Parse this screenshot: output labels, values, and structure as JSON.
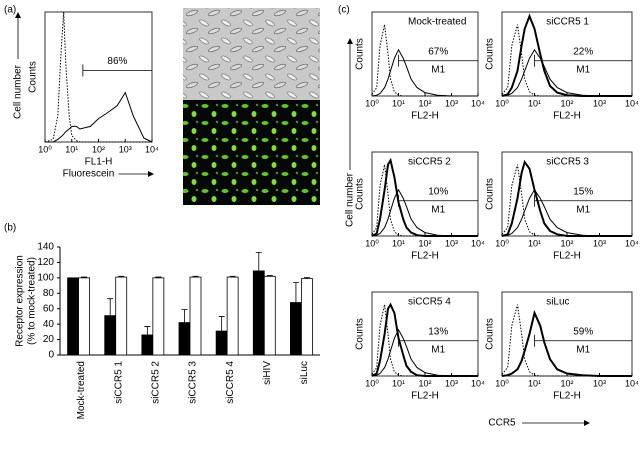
{
  "panel_labels": [
    "(a)",
    "(b)",
    "(c)"
  ],
  "shared": {
    "ylabel": "Cell number",
    "xlabel": "CCR5"
  },
  "chart_data": [
    {
      "type": "line",
      "xlog": true,
      "xlim": [
        1,
        10000
      ],
      "ylim": [
        0,
        100
      ],
      "xticks": [
        {
          "value": 1,
          "label": "10⁰"
        },
        {
          "value": 10,
          "label": "10¹"
        },
        {
          "value": 100,
          "label": "10²"
        },
        {
          "value": 1000,
          "label": "10³"
        },
        {
          "value": 10000,
          "label": "10⁴"
        }
      ],
      "xlabel": "FL1-H",
      "xlabel2": "Fluorescein",
      "ylabel": "Counts",
      "ylabel2": "Cell number",
      "annotation": "86%",
      "gate": [
        26,
        10000
      ],
      "x": [
        1,
        2,
        3,
        4,
        5,
        6,
        8,
        10,
        15,
        20,
        50,
        100,
        200,
        500,
        1000,
        2000,
        5000,
        10000
      ],
      "series": [
        {
          "color": "#000",
          "style": "dotted",
          "width": 1,
          "values": [
            0,
            2,
            20,
            70,
            100,
            60,
            20,
            5,
            1,
            0,
            0,
            0,
            0,
            0,
            0,
            0,
            0,
            0
          ]
        },
        {
          "color": "#000",
          "style": "solid",
          "width": 1,
          "values": [
            0,
            0,
            2,
            4,
            6,
            8,
            10,
            12,
            12,
            10,
            12,
            18,
            22,
            28,
            38,
            20,
            3,
            0
          ]
        }
      ]
    },
    {
      "type": "bar",
      "categories": [
        "Mock-treated",
        "siCCR5 1",
        "siCCR5 2",
        "siCCR5 3",
        "siCCR5 4",
        "siHIV",
        "siLuc"
      ],
      "ylim": [
        0,
        140
      ],
      "yticks": [
        0,
        20,
        40,
        60,
        80,
        100,
        120,
        140
      ],
      "ylabel": "Receptor expression",
      "ylabel2": "(% to mock-treated)",
      "series": [
        {
          "color": "#000",
          "values": [
            100,
            51,
            26,
            42,
            31,
            109,
            68
          ],
          "errors": [
            0,
            22,
            11,
            17,
            19,
            24,
            26
          ]
        },
        {
          "color": "#fff",
          "values": [
            100,
            101,
            100,
            101,
            101,
            102,
            99
          ],
          "errors": [
            1,
            1,
            1,
            1,
            1,
            1,
            1.5
          ]
        }
      ]
    },
    {
      "type": "line",
      "xlog": true,
      "title": "Mock-treated",
      "annotation": "67%",
      "gate_label": "M1",
      "gate": [
        10,
        10000
      ],
      "xlabel": "FL2-H",
      "ylabel": "Counts",
      "xlim": [
        1,
        10000
      ],
      "ylim": [
        0,
        100
      ],
      "xticks": [
        {
          "value": 1,
          "label": "10⁰"
        },
        {
          "value": 10,
          "label": "10¹"
        },
        {
          "value": 100,
          "label": "10²"
        },
        {
          "value": 1000,
          "label": "10³"
        },
        {
          "value": 10000,
          "label": "10⁴"
        }
      ],
      "x": [
        1,
        1.5,
        2,
        3,
        4,
        5,
        7,
        10,
        15,
        20,
        30,
        50,
        100,
        300,
        1000,
        10000
      ],
      "series": [
        {
          "color": "#000",
          "style": "dotted",
          "width": 1,
          "values": [
            2,
            10,
            60,
            85,
            50,
            20,
            5,
            1,
            0,
            0,
            0,
            0,
            0,
            0,
            0,
            0
          ]
        },
        {
          "color": "#000",
          "style": "solid",
          "width": 1,
          "values": [
            0,
            1,
            3,
            10,
            20,
            30,
            45,
            55,
            45,
            35,
            20,
            10,
            4,
            1,
            0,
            0
          ]
        }
      ]
    },
    {
      "type": "line",
      "xlog": true,
      "title": "siCCR5 1",
      "annotation": "22%",
      "gate_label": "M1",
      "gate": [
        10,
        10000
      ],
      "xlabel": "FL2-H",
      "ylabel": "Counts",
      "xlim": [
        1,
        10000
      ],
      "ylim": [
        0,
        100
      ],
      "xticks": [
        {
          "value": 1,
          "label": "10⁰"
        },
        {
          "value": 10,
          "label": "10¹"
        },
        {
          "value": 100,
          "label": "10²"
        },
        {
          "value": 1000,
          "label": "10³"
        },
        {
          "value": 10000,
          "label": "10⁴"
        }
      ],
      "x": [
        1,
        1.5,
        2,
        3,
        4,
        5,
        7,
        10,
        15,
        20,
        30,
        50,
        100,
        300,
        1000,
        10000
      ],
      "series": [
        {
          "color": "#000",
          "style": "dotted",
          "width": 1,
          "values": [
            2,
            10,
            60,
            85,
            50,
            20,
            5,
            1,
            0,
            0,
            0,
            0,
            0,
            0,
            0,
            0
          ]
        },
        {
          "color": "#000",
          "style": "solid",
          "width": 1,
          "values": [
            0,
            1,
            3,
            10,
            20,
            30,
            45,
            55,
            45,
            35,
            20,
            10,
            4,
            1,
            0,
            0
          ]
        },
        {
          "color": "#000",
          "style": "solid",
          "width": 2,
          "values": [
            0,
            2,
            10,
            30,
            60,
            80,
            95,
            80,
            50,
            30,
            12,
            4,
            1,
            0,
            0,
            0
          ]
        }
      ]
    },
    {
      "type": "line",
      "xlog": true,
      "title": "siCCR5 2",
      "annotation": "10%",
      "gate_label": "M1",
      "gate": [
        10,
        10000
      ],
      "xlabel": "FL2-H",
      "ylabel": "Counts",
      "xlim": [
        1,
        10000
      ],
      "ylim": [
        0,
        100
      ],
      "xticks": [
        {
          "value": 1,
          "label": "10⁰"
        },
        {
          "value": 10,
          "label": "10¹"
        },
        {
          "value": 100,
          "label": "10²"
        },
        {
          "value": 1000,
          "label": "10³"
        },
        {
          "value": 10000,
          "label": "10⁴"
        }
      ],
      "x": [
        1,
        1.5,
        2,
        3,
        4,
        5,
        7,
        10,
        15,
        20,
        30,
        50,
        100,
        300,
        1000,
        10000
      ],
      "series": [
        {
          "color": "#000",
          "style": "dotted",
          "width": 1,
          "values": [
            2,
            10,
            60,
            85,
            50,
            20,
            5,
            1,
            0,
            0,
            0,
            0,
            0,
            0,
            0,
            0
          ]
        },
        {
          "color": "#000",
          "style": "solid",
          "width": 1,
          "values": [
            0,
            1,
            3,
            10,
            20,
            30,
            45,
            55,
            45,
            35,
            20,
            10,
            4,
            1,
            0,
            0
          ]
        },
        {
          "color": "#000",
          "style": "solid",
          "width": 2,
          "values": [
            0,
            3,
            20,
            55,
            85,
            90,
            70,
            40,
            20,
            10,
            4,
            1,
            0,
            0,
            0,
            0
          ]
        }
      ]
    },
    {
      "type": "line",
      "xlog": true,
      "title": "siCCR5 3",
      "annotation": "15%",
      "gate_label": "M1",
      "gate": [
        10,
        10000
      ],
      "xlabel": "FL2-H",
      "ylabel": "Counts",
      "xlim": [
        1,
        10000
      ],
      "ylim": [
        0,
        100
      ],
      "xticks": [
        {
          "value": 1,
          "label": "10⁰"
        },
        {
          "value": 10,
          "label": "10¹"
        },
        {
          "value": 100,
          "label": "10²"
        },
        {
          "value": 1000,
          "label": "10³"
        },
        {
          "value": 10000,
          "label": "10⁴"
        }
      ],
      "x": [
        1,
        1.5,
        2,
        3,
        4,
        5,
        7,
        10,
        15,
        20,
        30,
        50,
        100,
        300,
        1000,
        10000
      ],
      "series": [
        {
          "color": "#000",
          "style": "dotted",
          "width": 1,
          "values": [
            2,
            10,
            60,
            85,
            50,
            20,
            5,
            1,
            0,
            0,
            0,
            0,
            0,
            0,
            0,
            0
          ]
        },
        {
          "color": "#000",
          "style": "solid",
          "width": 1,
          "values": [
            0,
            1,
            3,
            10,
            20,
            30,
            45,
            55,
            45,
            35,
            20,
            10,
            4,
            1,
            0,
            0
          ]
        },
        {
          "color": "#000",
          "style": "solid",
          "width": 2,
          "values": [
            0,
            2,
            15,
            45,
            75,
            88,
            80,
            55,
            30,
            15,
            6,
            2,
            0,
            0,
            0,
            0
          ]
        }
      ]
    },
    {
      "type": "line",
      "xlog": true,
      "title": "siCCR5 4",
      "annotation": "13%",
      "gate_label": "M1",
      "gate": [
        10,
        10000
      ],
      "xlabel": "FL2-H",
      "ylabel": "Counts",
      "xlim": [
        1,
        10000
      ],
      "ylim": [
        0,
        100
      ],
      "xticks": [
        {
          "value": 1,
          "label": "10⁰"
        },
        {
          "value": 10,
          "label": "10¹"
        },
        {
          "value": 100,
          "label": "10²"
        },
        {
          "value": 1000,
          "label": "10³"
        },
        {
          "value": 10000,
          "label": "10⁴"
        }
      ],
      "x": [
        1,
        1.5,
        2,
        3,
        4,
        5,
        7,
        10,
        15,
        20,
        30,
        50,
        100,
        300,
        1000,
        10000
      ],
      "series": [
        {
          "color": "#000",
          "style": "dotted",
          "width": 1,
          "values": [
            2,
            10,
            60,
            85,
            50,
            20,
            5,
            1,
            0,
            0,
            0,
            0,
            0,
            0,
            0,
            0
          ]
        },
        {
          "color": "#000",
          "style": "solid",
          "width": 1,
          "values": [
            0,
            1,
            3,
            10,
            20,
            30,
            45,
            55,
            45,
            35,
            20,
            10,
            4,
            1,
            0,
            0
          ]
        },
        {
          "color": "#000",
          "style": "solid",
          "width": 2,
          "values": [
            0,
            3,
            18,
            50,
            80,
            85,
            75,
            45,
            25,
            12,
            5,
            1,
            0,
            0,
            0,
            0
          ]
        }
      ]
    },
    {
      "type": "line",
      "xlog": true,
      "title": "siLuc",
      "annotation": "59%",
      "gate_label": "M1",
      "gate": [
        10,
        10000
      ],
      "xlabel": "FL2-H",
      "ylabel": "Counts",
      "xlim": [
        1,
        10000
      ],
      "ylim": [
        0,
        100
      ],
      "xticks": [
        {
          "value": 1,
          "label": "10⁰"
        },
        {
          "value": 10,
          "label": "10¹"
        },
        {
          "value": 100,
          "label": "10²"
        },
        {
          "value": 1000,
          "label": "10³"
        },
        {
          "value": 10000,
          "label": "10⁴"
        }
      ],
      "x": [
        1,
        1.5,
        2,
        3,
        4,
        5,
        7,
        10,
        15,
        20,
        30,
        50,
        100,
        300,
        1000,
        10000
      ],
      "series": [
        {
          "color": "#000",
          "style": "dotted",
          "width": 1,
          "values": [
            2,
            10,
            60,
            85,
            50,
            20,
            5,
            1,
            0,
            0,
            0,
            0,
            0,
            0,
            0,
            0
          ]
        },
        {
          "color": "#000",
          "style": "solid",
          "width": 2,
          "values": [
            0,
            1,
            3,
            8,
            18,
            30,
            50,
            75,
            60,
            40,
            20,
            8,
            3,
            1,
            0,
            0
          ]
        }
      ]
    }
  ]
}
